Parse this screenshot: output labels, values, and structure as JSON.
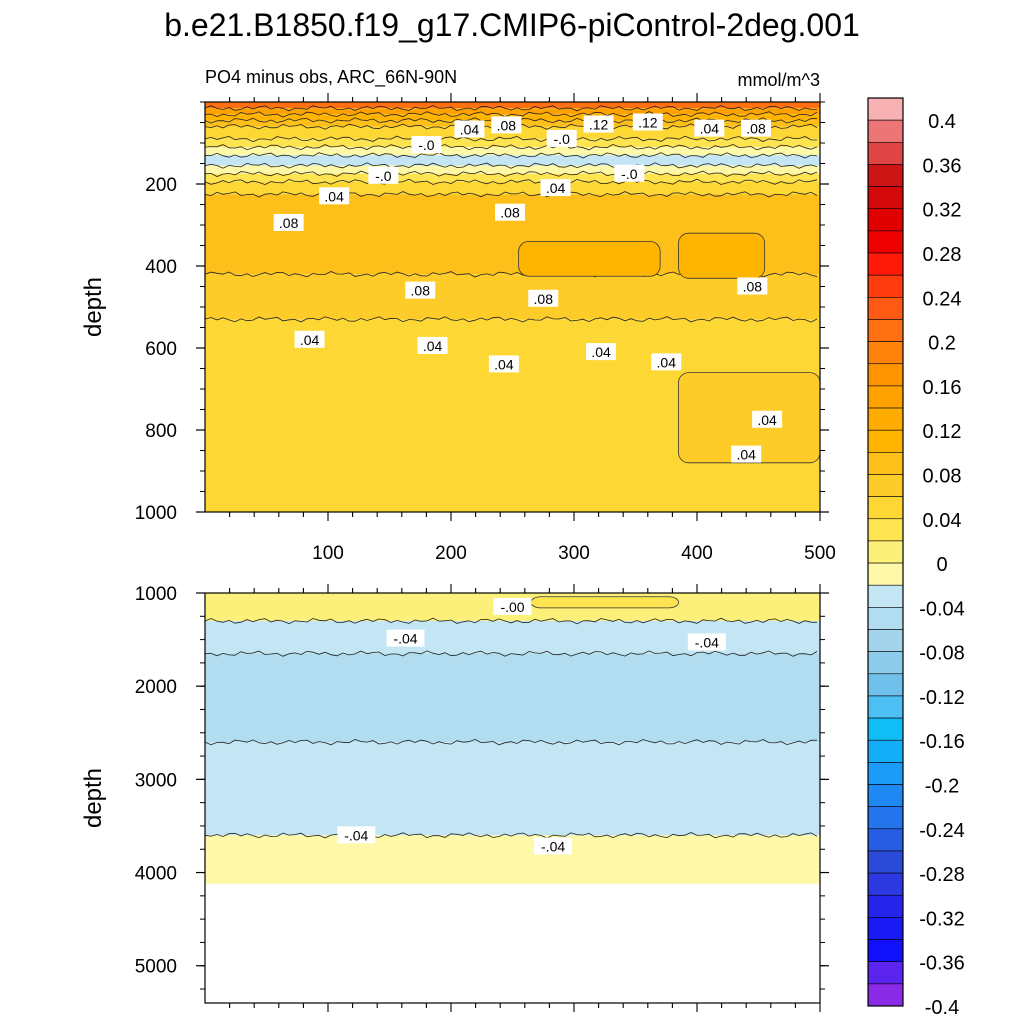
{
  "chart_data": {
    "type": "contour",
    "title": "b.e21.B1850.f19_g17.CMIP6-piControl-2deg.001",
    "subtitle_left": "PO4 minus obs, ARC_66N-90N",
    "units": "mmol/m^3",
    "x": {
      "range": [
        0,
        500
      ],
      "ticks": [
        100,
        200,
        300,
        400,
        500
      ]
    },
    "panels": [
      {
        "name": "upper-ocean",
        "ylabel": "depth",
        "y_range": [
          0,
          1000
        ],
        "y_ticks": [
          200,
          400,
          600,
          800,
          1000
        ],
        "bands": [
          {
            "top": 0,
            "bottom": 15,
            "value": 0.2
          },
          {
            "top": 15,
            "bottom": 30,
            "value": 0.14
          },
          {
            "top": 30,
            "bottom": 45,
            "value": 0.1
          },
          {
            "top": 45,
            "bottom": 60,
            "value": 0.07
          },
          {
            "top": 60,
            "bottom": 90,
            "value": 0.03
          },
          {
            "top": 90,
            "bottom": 110,
            "value": 0.01
          },
          {
            "top": 110,
            "bottom": 130,
            "value": -0.02
          },
          {
            "top": 130,
            "bottom": 155,
            "value": -0.04
          },
          {
            "top": 155,
            "bottom": 175,
            "value": -0.02
          },
          {
            "top": 175,
            "bottom": 195,
            "value": 0.01
          },
          {
            "top": 195,
            "bottom": 225,
            "value": 0.03
          },
          {
            "top": 225,
            "bottom": 420,
            "value": 0.07
          },
          {
            "top": 420,
            "bottom": 530,
            "value": 0.05
          },
          {
            "top": 530,
            "bottom": 1000,
            "value": 0.03
          }
        ],
        "patches": [
          {
            "x": [
              255,
              370
            ],
            "depth": [
              340,
              425
            ],
            "value": 0.09
          },
          {
            "x": [
              385,
              455
            ],
            "depth": [
              320,
              430
            ],
            "value": 0.09
          },
          {
            "x": [
              385,
              500
            ],
            "depth": [
              660,
              880
            ],
            "value": 0.05
          }
        ],
        "contour_labels": [
          {
            "text": ".04",
            "x": 215,
            "depth": 67
          },
          {
            "text": ".08",
            "x": 245,
            "depth": 57
          },
          {
            "text": "-.0",
            "x": 180,
            "depth": 105
          },
          {
            "text": "-.0",
            "x": 290,
            "depth": 90
          },
          {
            "text": ".12",
            "x": 320,
            "depth": 55
          },
          {
            "text": ".12",
            "x": 360,
            "depth": 50
          },
          {
            "text": ".04",
            "x": 410,
            "depth": 65
          },
          {
            "text": ".08",
            "x": 448,
            "depth": 65
          },
          {
            "text": "-.0",
            "x": 145,
            "depth": 180
          },
          {
            "text": "-.0",
            "x": 345,
            "depth": 175
          },
          {
            "text": ".04",
            "x": 105,
            "depth": 230
          },
          {
            "text": ".04",
            "x": 285,
            "depth": 210
          },
          {
            "text": ".08",
            "x": 68,
            "depth": 295
          },
          {
            "text": ".08",
            "x": 248,
            "depth": 270
          },
          {
            "text": ".08",
            "x": 175,
            "depth": 460
          },
          {
            "text": ".08",
            "x": 275,
            "depth": 480
          },
          {
            "text": ".08",
            "x": 445,
            "depth": 450
          },
          {
            "text": ".04",
            "x": 85,
            "depth": 580
          },
          {
            "text": ".04",
            "x": 185,
            "depth": 595
          },
          {
            "text": ".04",
            "x": 243,
            "depth": 640
          },
          {
            "text": ".04",
            "x": 322,
            "depth": 610
          },
          {
            "text": ".04",
            "x": 375,
            "depth": 635
          },
          {
            "text": ".04",
            "x": 457,
            "depth": 775
          },
          {
            "text": ".04",
            "x": 440,
            "depth": 860
          }
        ]
      },
      {
        "name": "deep-ocean",
        "ylabel": "depth",
        "y_range": [
          1000,
          5400
        ],
        "y_ticks": [
          1000,
          2000,
          3000,
          4000,
          5000
        ],
        "bands": [
          {
            "top": 1000,
            "bottom": 1300,
            "value": -0.01
          },
          {
            "top": 1300,
            "bottom": 1650,
            "value": -0.05
          },
          {
            "top": 1650,
            "bottom": 2600,
            "value": -0.07
          },
          {
            "top": 2600,
            "bottom": 3600,
            "value": -0.045
          },
          {
            "top": 3600,
            "bottom": 4120,
            "value": -0.03
          }
        ],
        "patches": [
          {
            "x": [
              265,
              385
            ],
            "depth": [
              1040,
              1160
            ],
            "value": 0.01
          }
        ],
        "contour_labels": [
          {
            "text": "-.00",
            "x": 250,
            "depth": 1150
          },
          {
            "text": "-.04",
            "x": 163,
            "depth": 1490
          },
          {
            "text": "-.04",
            "x": 408,
            "depth": 1530
          },
          {
            "text": "-.04",
            "x": 123,
            "depth": 3600
          },
          {
            "text": "-.04",
            "x": 283,
            "depth": 3720
          }
        ]
      }
    ],
    "colorbar": {
      "levels": [
        -0.4,
        -0.38,
        -0.36,
        -0.34,
        -0.32,
        -0.3,
        -0.28,
        -0.26,
        -0.24,
        -0.22,
        -0.2,
        -0.18,
        -0.16,
        -0.14,
        -0.12,
        -0.1,
        -0.08,
        -0.06,
        -0.04,
        -0.02,
        0,
        0.02,
        0.04,
        0.06,
        0.08,
        0.1,
        0.12,
        0.14,
        0.16,
        0.18,
        0.2,
        0.22,
        0.24,
        0.26,
        0.28,
        0.3,
        0.32,
        0.34,
        0.36,
        0.38,
        0.4
      ],
      "labels": [
        "0.4",
        "0.36",
        "0.32",
        "0.28",
        "0.24",
        "0.2",
        "0.16",
        "0.12",
        "0.08",
        "0.04",
        "0",
        "-0.04",
        "-0.08",
        "-0.12",
        "-0.16",
        "-0.2",
        "-0.24",
        "-0.28",
        "-0.32",
        "-0.36",
        "-0.4"
      ],
      "colors_top_to_bottom": [
        "#f9b2b4",
        "#ec7576",
        "#e04545",
        "#cc1515",
        "#d40a0a",
        "#e10000",
        "#ee0000",
        "#ff1a0a",
        "#ff3b0f",
        "#ff5a14",
        "#ff7012",
        "#ff820a",
        "#ff9400",
        "#ffa200",
        "#ffac00",
        "#ffb400",
        "#fdc01a",
        "#fdcc28",
        "#fdd835",
        "#fde450",
        "#fdf07a",
        "#fef9a8",
        "#c4e6f4",
        "#b2dcf0",
        "#a3d4ec",
        "#8ccbea",
        "#6fc1ec",
        "#4ebff2",
        "#10bdf5",
        "#14aef8",
        "#1a9cf8",
        "#1f88f2",
        "#2474ec",
        "#285ee4",
        "#2c4ad8",
        "#2c38e0",
        "#2424ea",
        "#1a1af4",
        "#1010fb",
        "#5a24ee",
        "#8a2be8"
      ]
    }
  }
}
